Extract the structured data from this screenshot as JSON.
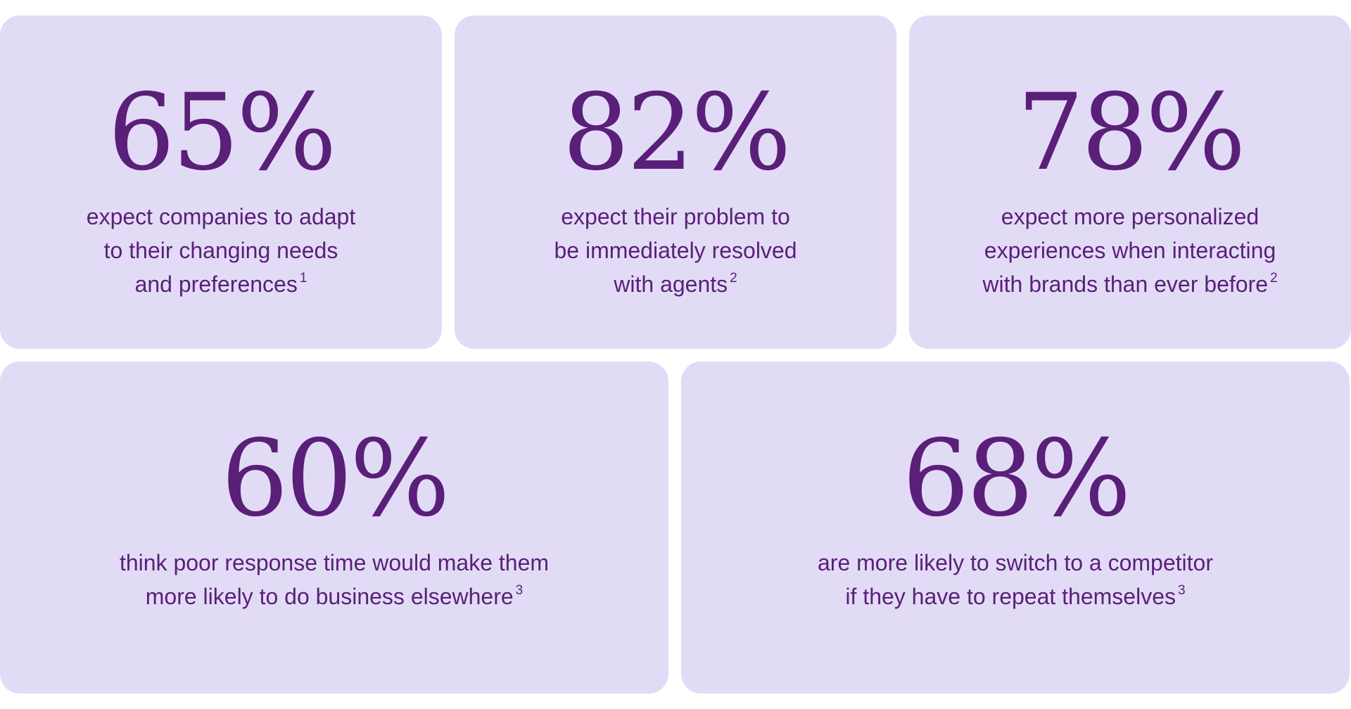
{
  "colors": {
    "card_background": "#e2dbf6",
    "text": "#5a1f78",
    "page_background": "#ffffff"
  },
  "cards": [
    {
      "stat": "65%",
      "lines": [
        "expect companies to adapt",
        "to their changing needs",
        "and preferences"
      ],
      "footnote": "1"
    },
    {
      "stat": "82%",
      "lines": [
        "expect their problem to",
        "be immediately resolved",
        "with agents"
      ],
      "footnote": "2"
    },
    {
      "stat": "78%",
      "lines": [
        "expect more personalized",
        "experiences when interacting",
        "with brands than ever before"
      ],
      "footnote": "2"
    },
    {
      "stat": "60%",
      "lines": [
        "think poor response time would make them",
        "more likely to do business elsewhere"
      ],
      "footnote": "3"
    },
    {
      "stat": "68%",
      "lines": [
        "are more likely to switch to a competitor",
        "if they have to repeat themselves"
      ],
      "footnote": "3"
    }
  ]
}
